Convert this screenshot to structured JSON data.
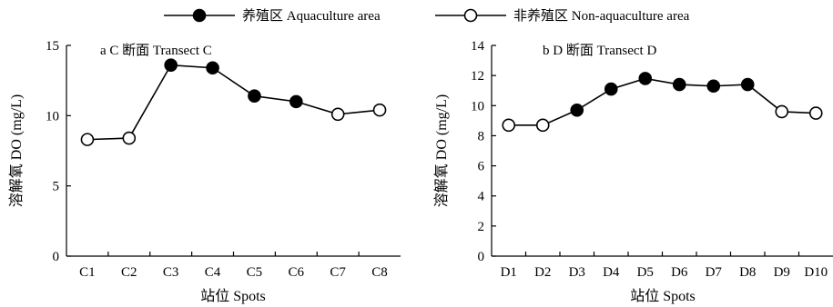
{
  "legend": {
    "aquaculture_label": "养殖区 Aquaculture area",
    "non_aquaculture_label": "非养殖区 Non-aquaculture area"
  },
  "colors": {
    "aquaculture_marker": "#000000",
    "non_aquaculture_marker": "#ffffff",
    "line": "#000000"
  },
  "chart_data": [
    {
      "type": "line",
      "title": "a  C 断面 Transect C",
      "xlabel": "站位  Spots",
      "ylabel": "溶解氧 DO (mg/L)",
      "categories": [
        "C1",
        "C2",
        "C3",
        "C4",
        "C5",
        "C6",
        "C7",
        "C8"
      ],
      "values": [
        8.3,
        8.4,
        13.6,
        13.4,
        11.4,
        11.0,
        10.1,
        10.4
      ],
      "aquaculture": [
        false,
        false,
        true,
        true,
        true,
        true,
        false,
        false
      ],
      "ylim": [
        0,
        15
      ],
      "yticks": [
        0,
        5,
        10,
        15
      ],
      "grid": false
    },
    {
      "type": "line",
      "title": "b  D 断面 Transect D",
      "xlabel": "站位  Spots",
      "ylabel": "溶解氧 DO (mg/L)",
      "categories": [
        "D1",
        "D2",
        "D3",
        "D4",
        "D5",
        "D6",
        "D7",
        "D8",
        "D9",
        "D10"
      ],
      "values": [
        8.7,
        8.7,
        9.7,
        11.1,
        11.8,
        11.4,
        11.3,
        11.4,
        9.6,
        9.5
      ],
      "aquaculture": [
        false,
        false,
        true,
        true,
        true,
        true,
        true,
        true,
        false,
        false
      ],
      "ylim": [
        0,
        14
      ],
      "yticks": [
        0,
        2,
        4,
        6,
        8,
        10,
        12,
        14
      ],
      "grid": false
    }
  ]
}
